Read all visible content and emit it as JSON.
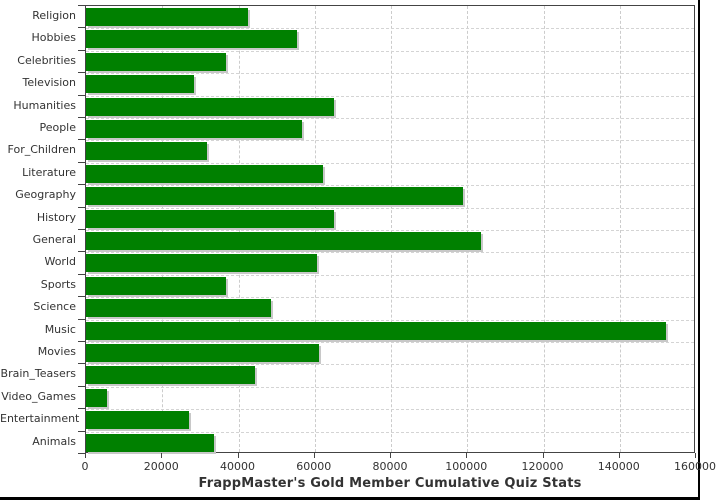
{
  "chart_data": {
    "type": "bar",
    "orientation": "horizontal",
    "title": "FrappMaster's Gold Member Cumulative Quiz Stats",
    "title_position": "bottom",
    "xlabel": "",
    "ylabel": "",
    "categories": [
      "Religion",
      "Hobbies",
      "Celebrities",
      "Television",
      "Humanities",
      "People",
      "For_Children",
      "Literature",
      "Geography",
      "History",
      "General",
      "World",
      "Sports",
      "Science",
      "Music",
      "Movies",
      "Brain_Teasers",
      "Video_Games",
      "Entertainment",
      "Animals"
    ],
    "values": [
      42500,
      55300,
      36600,
      28400,
      65000,
      56600,
      31800,
      62200,
      99000,
      65000,
      103700,
      60500,
      36600,
      48500,
      152000,
      61200,
      44400,
      5400,
      26900,
      33700
    ],
    "xlim": [
      0,
      160000
    ],
    "x_ticks": [
      0,
      20000,
      40000,
      60000,
      80000,
      100000,
      120000,
      140000,
      160000
    ],
    "grid": "dashed",
    "legend": "none",
    "colors": {
      "bar": "#008000",
      "bar_shadow": "#c8c8c8",
      "gridline": "#cccccc",
      "axis": "#444444",
      "tick_label": "#333333",
      "title": "#333333",
      "background": "#ffffff"
    }
  }
}
